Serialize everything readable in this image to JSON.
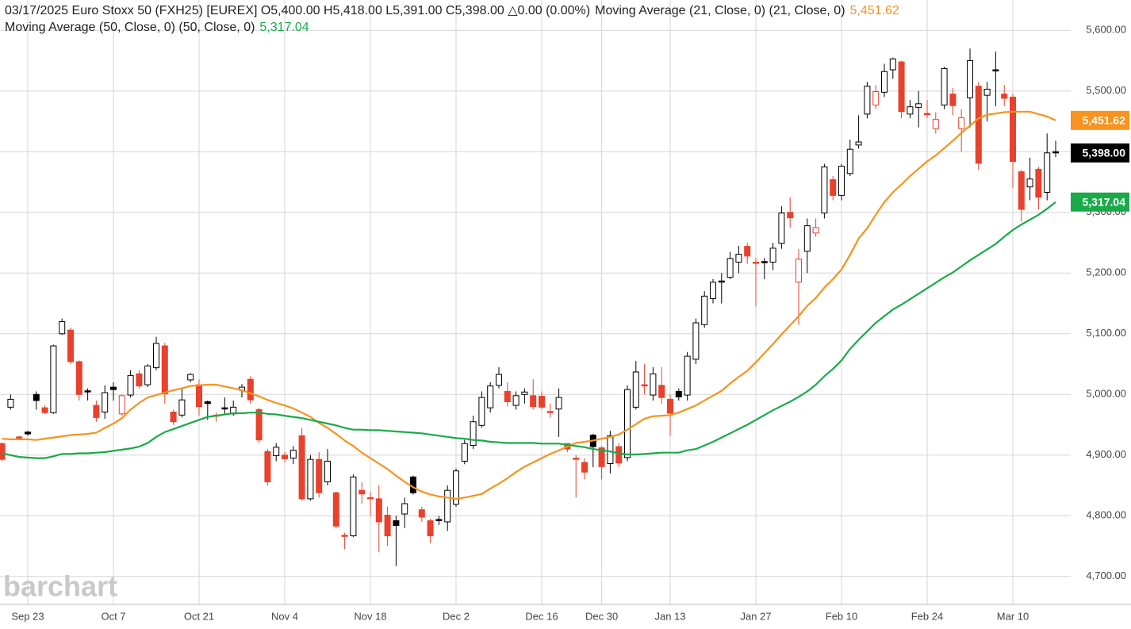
{
  "chart_data": {
    "type": "candlestick",
    "title": "03/17/2025 Euro Stoxx 50 (FXH25) [EUREX] O5,400.00 H5,418.00 L5,391.00 C5,398.00 △0.00 (0.00%)",
    "watermark": "barchart",
    "categories": [
      null,
      null,
      null,
      "Sep 23",
      null,
      null,
      null,
      null,
      null,
      null,
      null,
      null,
      null,
      "Oct 7",
      null,
      null,
      null,
      null,
      null,
      null,
      null,
      null,
      null,
      "Oct 21",
      null,
      null,
      null,
      null,
      null,
      null,
      null,
      null,
      null,
      "Nov 4",
      null,
      null,
      null,
      null,
      null,
      null,
      null,
      null,
      null,
      "Nov 18",
      null,
      null,
      null,
      null,
      null,
      null,
      null,
      null,
      null,
      "Dec 2",
      null,
      null,
      null,
      null,
      null,
      null,
      null,
      null,
      null,
      "Dec 16",
      null,
      null,
      null,
      null,
      null,
      null,
      "Dec 30",
      null,
      null,
      null,
      null,
      null,
      null,
      null,
      "Jan 13",
      null,
      null,
      null,
      null,
      null,
      null,
      null,
      null,
      null,
      "Jan 27",
      null,
      null,
      null,
      null,
      null,
      null,
      null,
      null,
      null,
      "Feb 10",
      null,
      null,
      null,
      null,
      null,
      null,
      null,
      null,
      null,
      "Feb 24",
      null,
      null,
      null,
      null,
      null,
      null,
      null,
      null,
      null,
      "Mar 10",
      null,
      null,
      null,
      null,
      null
    ],
    "open": [
      4919,
      4979,
      4930,
      4938,
      5000,
      4978,
      4970,
      5100,
      5106,
      5054,
      5006,
      4982,
      4971,
      5012,
      4968,
      4999,
      5034,
      5016,
      5044,
      5080,
      4971,
      4966,
      5024,
      5016,
      4988,
      4966,
      4978,
      4968,
      5007,
      5025,
      4975,
      4906,
      4899,
      4900,
      4895,
      4932,
      4828,
      4893,
      4856,
      4838,
      4768,
      4767,
      4842,
      4830,
      4828,
      4801,
      4792,
      4803,
      4864,
      4810,
      4792,
      4794,
      4790,
      4819,
      4890,
      4916,
      4949,
      4978,
      5015,
      5005,
      4982,
      5000,
      4998,
      4997,
      4972,
      4976,
      4919,
      4895,
      4888,
      4933,
      4912,
      4886,
      4914,
      4896,
      4979,
      5016,
      4999,
      5015,
      4992,
      5005,
      4999,
      5058,
      5115,
      5158,
      5187,
      5193,
      5218,
      5244,
      5218,
      5219,
      5218,
      5249,
      5300,
      5185,
      5236,
      5266,
      5299,
      5354,
      5328,
      5364,
      5411,
      5462,
      5477,
      5498,
      5535,
      5548,
      5462,
      5473,
      5463,
      5438,
      5477,
      5495,
      5438,
      5489,
      5508,
      5493,
      5535,
      5495,
      5490,
      5367,
      5342,
      5371,
      5333,
      5400
    ],
    "high": [
      4921,
      5000,
      4932,
      4940,
      5005,
      4982,
      5082,
      5125,
      5110,
      5056,
      5010,
      4990,
      5015,
      5020,
      5000,
      5040,
      5040,
      5050,
      5095,
      5085,
      4975,
      5010,
      5035,
      5025,
      4990,
      4970,
      4995,
      4990,
      5017,
      5030,
      4978,
      4910,
      4920,
      4905,
      4915,
      4945,
      4900,
      4905,
      4910,
      4840,
      4772,
      4868,
      4855,
      4840,
      4850,
      4815,
      4800,
      4830,
      4866,
      4815,
      4795,
      4800,
      4850,
      4878,
      4925,
      4965,
      5005,
      5020,
      5045,
      5020,
      5005,
      5010,
      5025,
      5005,
      4985,
      5010,
      4920,
      4900,
      4895,
      4935,
      4915,
      4940,
      4920,
      5015,
      5055,
      5050,
      5045,
      5045,
      5000,
      5010,
      5070,
      5125,
      5170,
      5190,
      5200,
      5235,
      5245,
      5250,
      5225,
      5225,
      5250,
      5310,
      5325,
      5240,
      5290,
      5290,
      5380,
      5360,
      5380,
      5420,
      5460,
      5515,
      5510,
      5545,
      5555,
      5550,
      5485,
      5500,
      5485,
      5465,
      5540,
      5505,
      5470,
      5570,
      5515,
      5515,
      5565,
      5510,
      5495,
      5370,
      5390,
      5375,
      5430,
      5418
    ],
    "low": [
      4890,
      4975,
      4926,
      4932,
      4975,
      4968,
      4968,
      5098,
      5050,
      4990,
      4990,
      4955,
      4960,
      4990,
      4965,
      4995,
      5010,
      5012,
      5040,
      4985,
      4950,
      4962,
      5020,
      4965,
      4958,
      4955,
      4966,
      4965,
      4995,
      4985,
      4920,
      4850,
      4890,
      4888,
      4885,
      4825,
      4825,
      4830,
      4850,
      4780,
      4745,
      4765,
      4820,
      4800,
      4740,
      4750,
      4717,
      4780,
      4835,
      4790,
      4755,
      4785,
      4775,
      4815,
      4885,
      4910,
      4945,
      4970,
      5010,
      4980,
      4975,
      4985,
      4975,
      4975,
      4962,
      4930,
      4905,
      4830,
      4860,
      4880,
      4860,
      4870,
      4880,
      4890,
      4975,
      5000,
      4990,
      4985,
      4932,
      4990,
      4990,
      5050,
      5110,
      5150,
      5150,
      5190,
      5200,
      5215,
      5145,
      5190,
      5205,
      5240,
      5275,
      5115,
      5200,
      5260,
      5290,
      5320,
      5320,
      5360,
      5405,
      5455,
      5470,
      5490,
      5520,
      5455,
      5455,
      5440,
      5455,
      5430,
      5470,
      5460,
      5400,
      5440,
      5370,
      5450,
      5475,
      5475,
      5340,
      5285,
      5320,
      5305,
      5320,
      5391
    ],
    "close": [
      4893,
      4992,
      4928,
      4935,
      4990,
      4970,
      5080,
      5120,
      5054,
      5000,
      5005,
      4962,
      5003,
      5008,
      4998,
      5031,
      5014,
      5047,
      5084,
      5001,
      4955,
      4991,
      5033,
      4980,
      4985,
      4965,
      4976,
      4979,
      5012,
      4991,
      4925,
      4856,
      4913,
      4894,
      4908,
      4828,
      4893,
      4838,
      4890,
      4783,
      4767,
      4864,
      4836,
      4828,
      4790,
      4767,
      4784,
      4820,
      4838,
      4798,
      4767,
      4793,
      4842,
      4874,
      4919,
      4955,
      4995,
      5014,
      5033,
      4988,
      4998,
      5004,
      4980,
      4979,
      4970,
      4995,
      4910,
      4894,
      4872,
      4914,
      4881,
      4932,
      4887,
      5008,
      5037,
      5014,
      5034,
      4995,
      4969,
      4996,
      5063,
      5118,
      5162,
      5185,
      5186,
      5224,
      5231,
      5228,
      5217,
      5218,
      5241,
      5299,
      5291,
      5223,
      5278,
      5275,
      5375,
      5328,
      5376,
      5404,
      5416,
      5508,
      5499,
      5532,
      5553,
      5466,
      5474,
      5479,
      5462,
      5453,
      5537,
      5476,
      5456,
      5550,
      5381,
      5503,
      5533,
      5488,
      5384,
      5305,
      5355,
      5325,
      5398,
      5398
    ],
    "close_label": "5,398.00",
    "up_color": "#000000",
    "down_color": "#e8412c",
    "overlays": [
      {
        "name": "Moving Average (21, Close, 0) (21, Close, 0)",
        "color": "#f7931e",
        "last_label": "5,451.62",
        "values": [
          4927,
          4926,
          4926,
          4926,
          4925,
          4927,
          4929,
          4931,
          4933,
          4934,
          4935,
          4937,
          4945,
          4952,
          4961,
          4975,
          4986,
          4995,
          4999,
          5003,
          5007,
          5010,
          5014,
          5015,
          5016,
          5016,
          5013,
          5010,
          5007,
          5002,
          4997,
          4991,
          4986,
          4982,
          4977,
          4970,
          4963,
          4953,
          4945,
          4935,
          4924,
          4915,
          4904,
          4895,
          4886,
          4877,
          4866,
          4856,
          4847,
          4840,
          4835,
          4832,
          4830,
          4828,
          4830,
          4833,
          4836,
          4845,
          4853,
          4862,
          4872,
          4881,
          4888,
          4895,
          4902,
          4908,
          4914,
          4920,
          4922,
          4924,
          4927,
          4930,
          4934,
          4942,
          4951,
          4960,
          4964,
          4965,
          4966,
          4970,
          4976,
          4982,
          4990,
          4998,
          5006,
          5018,
          5029,
          5039,
          5053,
          5068,
          5083,
          5099,
          5114,
          5129,
          5146,
          5159,
          5176,
          5190,
          5206,
          5230,
          5257,
          5274,
          5296,
          5317,
          5333,
          5346,
          5360,
          5372,
          5384,
          5394,
          5406,
          5418,
          5431,
          5443,
          5455,
          5461,
          5463,
          5465,
          5466,
          5466,
          5466,
          5462,
          5458,
          5451.62
        ]
      },
      {
        "name": "Moving Average (50, Close, 0) (50, Close, 0)",
        "color": "#1aaa4a",
        "last_label": "5,317.04",
        "values": [
          4903,
          4900,
          4897,
          4896,
          4895,
          4895,
          4898,
          4902,
          4902,
          4903,
          4903,
          4904,
          4905,
          4907,
          4909,
          4911,
          4914,
          4920,
          4930,
          4938,
          4943,
          4948,
          4953,
          4958,
          4963,
          4965,
          4967,
          4969,
          4969,
          4970,
          4970,
          4968,
          4967,
          4965,
          4963,
          4961,
          4958,
          4955,
          4952,
          4949,
          4945,
          4942,
          4942,
          4941,
          4941,
          4940,
          4939,
          4938,
          4937,
          4936,
          4934,
          4932,
          4930,
          4928,
          4927,
          4925,
          4924,
          4922,
          4921,
          4920,
          4920,
          4920,
          4920,
          4919,
          4919,
          4919,
          4917,
          4915,
          4913,
          4910,
          4908,
          4906,
          4903,
          4901,
          4901,
          4902,
          4903,
          4904,
          4904,
          4904,
          4908,
          4910,
          4916,
          4922,
          4929,
          4936,
          4943,
          4950,
          4958,
          4966,
          4974,
          4981,
          4988,
          4996,
          5005,
          5016,
          5030,
          5042,
          5056,
          5075,
          5090,
          5104,
          5118,
          5129,
          5140,
          5148,
          5157,
          5166,
          5175,
          5184,
          5193,
          5201,
          5211,
          5221,
          5230,
          5239,
          5248,
          5260,
          5271,
          5280,
          5288,
          5296,
          5306,
          5317.04
        ]
      }
    ],
    "ylim": [
      4654,
      5650
    ],
    "yticks": [
      {
        "value": 4700,
        "label": "4,700.00"
      },
      {
        "value": 4800,
        "label": "4,800.00"
      },
      {
        "value": 4900,
        "label": "4,900.00"
      },
      {
        "value": 5000,
        "label": "5,000.00"
      },
      {
        "value": 5100,
        "label": "5,100.00"
      },
      {
        "value": 5200,
        "label": "5,200.00"
      },
      {
        "value": 5300,
        "label": "5,300.00"
      },
      {
        "value": 5400,
        "label": "5,400.00"
      },
      {
        "value": 5500,
        "label": "5,500.00"
      },
      {
        "value": 5600,
        "label": "5,600.00"
      }
    ],
    "grid": true
  }
}
